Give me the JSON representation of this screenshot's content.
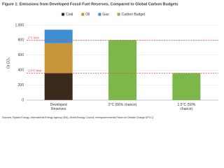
{
  "chart_data": {
    "type": "stacked-bar",
    "title": "Figure 1: Emissions from Developed Fossil Fuel Reserves, Compared to Global Carbon Budgets",
    "y_label": "Gt CO₂",
    "categories": [
      "Developed Reserves",
      "2°C (66% chance)",
      "1.5°C (50% chance)"
    ],
    "series": [
      {
        "name": "Coal",
        "color": "#3b2a1c",
        "values": [
          360,
          null,
          null
        ]
      },
      {
        "name": "Oil",
        "color": "#c8963a",
        "values": [
          400,
          null,
          null
        ]
      },
      {
        "name": "Gas",
        "color": "#3d8fd1",
        "values": [
          180,
          null,
          null
        ]
      },
      {
        "name": "Carbon Budget",
        "color": "#7cb74a",
        "values": [
          null,
          800,
          360
        ]
      }
    ],
    "reference_lines": [
      {
        "value": 800,
        "label": "2°C limit",
        "color": "#d9534f"
      },
      {
        "value": 360,
        "label": "1.5°C limit",
        "color": "#d9534f"
      }
    ],
    "ylim": [
      0,
      1000
    ],
    "yticks": [
      0,
      200,
      400,
      600,
      800,
      {
        "value": 1000,
        "label": "1,000"
      }
    ],
    "grid": true,
    "legend": "top",
    "source": "Sources: Rystad Energy, International Energy Agency (IEA), World Energy Council, Intergovernmental Panel on Climate Change (IPCC)"
  }
}
